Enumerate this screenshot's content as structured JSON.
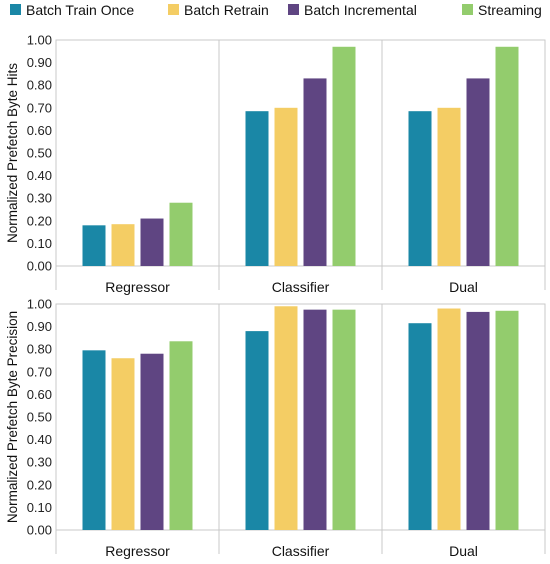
{
  "chart_data": {
    "type": "bar",
    "legend_position": "top",
    "grid": false,
    "series_names": [
      "Batch Train Once",
      "Batch Retrain",
      "Batch Incremental",
      "Streaming"
    ],
    "colors": [
      "#1a87a6",
      "#f4cd64",
      "#5f4582",
      "#93cc6d"
    ],
    "categories": [
      "Regressor",
      "Classifier",
      "Dual"
    ],
    "panels": [
      {
        "ylabel": "Normalized Prefetch Byte Hits",
        "ylim": [
          0,
          1.0
        ],
        "yticks": [
          "0.00",
          "0.10",
          "0.20",
          "0.30",
          "0.40",
          "0.50",
          "0.60",
          "0.70",
          "0.80",
          "0.90",
          "1.00"
        ],
        "series": [
          {
            "name": "Batch Train Once",
            "values": [
              0.18,
              0.685,
              0.685
            ]
          },
          {
            "name": "Batch Retrain",
            "values": [
              0.185,
              0.7,
              0.7
            ]
          },
          {
            "name": "Batch Incremental",
            "values": [
              0.21,
              0.83,
              0.83
            ]
          },
          {
            "name": "Streaming",
            "values": [
              0.28,
              0.97,
              0.97
            ]
          }
        ]
      },
      {
        "ylabel": "Normalized Prefetch Byte Precision",
        "ylim": [
          0,
          1.0
        ],
        "yticks": [
          "0.00",
          "0.10",
          "0.20",
          "0.30",
          "0.40",
          "0.50",
          "0.60",
          "0.70",
          "0.80",
          "0.90",
          "1.00"
        ],
        "series": [
          {
            "name": "Batch Train Once",
            "values": [
              0.795,
              0.88,
              0.915
            ]
          },
          {
            "name": "Batch Retrain",
            "values": [
              0.76,
              0.99,
              0.98
            ]
          },
          {
            "name": "Batch Incremental",
            "values": [
              0.78,
              0.975,
              0.965
            ]
          },
          {
            "name": "Streaming",
            "values": [
              0.835,
              0.975,
              0.97
            ]
          }
        ]
      }
    ]
  }
}
